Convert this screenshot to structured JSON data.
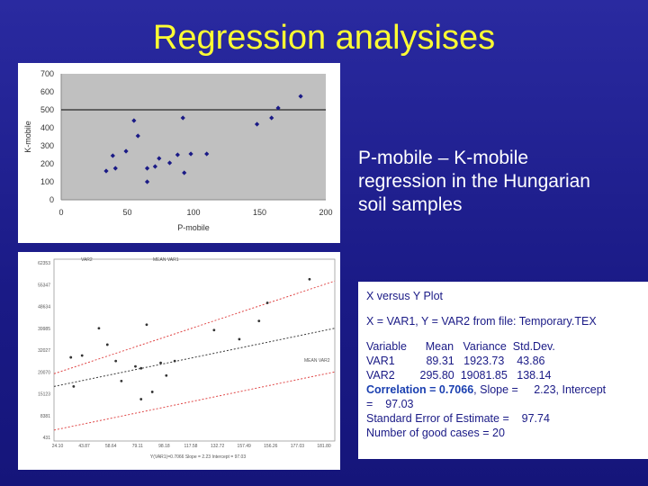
{
  "slide": {
    "title": "Regression analysises",
    "description_lines": [
      "P-mobile – K-mobile",
      "regression  in the Hungarian",
      "soil samples"
    ]
  },
  "stats": {
    "header": "X versus Y Plot",
    "source": "X = VAR1, Y = VAR2 from file: Temporary.TEX",
    "table_header": "Variable      Mean   Variance  Std.Dev.",
    "row1": "VAR1          89.31   1923.73    43.86",
    "row2": "VAR2        295.80  19081.85   138.14",
    "correlation_label": "Correlation = 0.7066",
    "correlation_rest": ", Slope =     2.23, Intercept",
    "intercept_line": "=    97.03",
    "std_error": "Standard Error of Estimate =    97.74",
    "good_cases": "Number of good cases = 20"
  },
  "chart_data": [
    {
      "type": "scatter",
      "title": "",
      "xlabel": "P-mobile",
      "ylabel": "K-mobile",
      "xlim": [
        0,
        200
      ],
      "ylim": [
        0,
        700
      ],
      "xticks": [
        0,
        50,
        100,
        150,
        200
      ],
      "yticks": [
        0,
        100,
        200,
        300,
        400,
        500,
        600,
        700
      ],
      "background": "#c0c0c0",
      "marker_color": "#1a1a86",
      "reference_line_y": 500,
      "x": [
        34,
        39,
        41,
        49,
        55,
        58,
        65,
        65,
        71,
        74,
        82,
        88,
        92,
        93,
        98,
        148,
        159,
        164,
        181,
        110
      ],
      "y": [
        160,
        245,
        175,
        270,
        440,
        355,
        100,
        175,
        185,
        230,
        205,
        250,
        455,
        150,
        255,
        420,
        455,
        510,
        575,
        255
      ]
    },
    {
      "type": "scatter",
      "title": "",
      "header_labels": [
        "VAR2",
        "MEAN VAR1"
      ],
      "yticks": [
        "62353",
        "55347",
        "48634",
        "39985",
        "32027",
        "20070",
        "15123",
        "8381",
        "431"
      ],
      "xticks": [
        "24.10",
        "43.87",
        "58.64",
        "79.11",
        "98.18",
        "117.58",
        "132.72",
        "157.49",
        "156.26",
        "177.03",
        "181.80"
      ],
      "bottom_caption": "Y(VAR1)=0.7066 Slope = 2.23 Intercept = 97.03",
      "side_label": "MEAN VAR2",
      "fit_line_color": "#3a3a3a",
      "band_color": "#e04848",
      "x": [
        0.06,
        0.07,
        0.1,
        0.16,
        0.19,
        0.22,
        0.24,
        0.29,
        0.31,
        0.33,
        0.35,
        0.38,
        0.4,
        0.43,
        0.57,
        0.66,
        0.73,
        0.76,
        0.91,
        0.31
      ],
      "y": [
        0.46,
        0.3,
        0.47,
        0.62,
        0.53,
        0.44,
        0.33,
        0.41,
        0.4,
        0.64,
        0.27,
        0.43,
        0.36,
        0.44,
        0.61,
        0.56,
        0.66,
        0.76,
        0.89,
        0.23
      ]
    }
  ]
}
